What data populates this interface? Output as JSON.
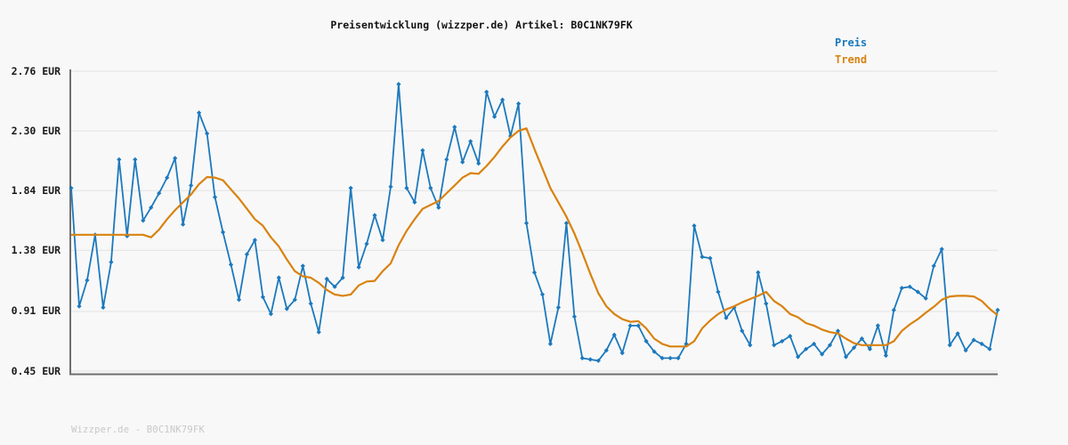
{
  "watermark": "Wizzper.de - B0C1NK79FK",
  "colors": {
    "background": "#f8f8f8",
    "grid": "#e8e8e8",
    "axis": "#6e6e6e",
    "preis": "#1c79bd",
    "trend": "#d9820f",
    "tick_label": "#1a1a1a",
    "title": "#111111",
    "watermark": "#c8c8c8"
  },
  "chart_data": {
    "type": "line",
    "title": "Preisentwicklung (wizzper.de) Artikel: B0C1NK79FK",
    "xlabel": "",
    "ylabel": "",
    "ylim": [
      0.45,
      2.76
    ],
    "grid": true,
    "legend_position": "top-right",
    "x_tick_labels": [],
    "n_points": 117,
    "y_ticks": [
      {
        "label": "2.76 EUR",
        "value": 2.76
      },
      {
        "label": "2.30 EUR",
        "value": 2.3
      },
      {
        "label": "1.84 EUR",
        "value": 1.84
      },
      {
        "label": "1.38 EUR",
        "value": 1.38
      },
      {
        "label": "0.91 EUR",
        "value": 0.91
      },
      {
        "label": "0.45 EUR",
        "value": 0.45
      }
    ],
    "series": [
      {
        "name": "Preis",
        "unit": "EUR",
        "marker": "diamond",
        "values": [
          1.86,
          0.95,
          1.15,
          1.5,
          0.94,
          1.29,
          2.08,
          1.49,
          2.08,
          1.61,
          1.71,
          1.82,
          1.94,
          2.09,
          1.58,
          1.88,
          2.44,
          2.28,
          1.79,
          1.52,
          1.27,
          1.0,
          1.35,
          1.46,
          1.02,
          0.89,
          1.17,
          0.93,
          1.0,
          1.26,
          0.97,
          0.75,
          1.16,
          1.1,
          1.17,
          1.86,
          1.25,
          1.43,
          1.65,
          1.46,
          1.87,
          2.66,
          1.86,
          1.75,
          2.15,
          1.86,
          1.71,
          2.08,
          2.33,
          2.06,
          2.22,
          2.05,
          2.6,
          2.41,
          2.54,
          2.26,
          2.51,
          1.59,
          1.21,
          1.04,
          0.66,
          0.94,
          1.59,
          0.87,
          0.55,
          0.54,
          0.53,
          0.61,
          0.73,
          0.59,
          0.8,
          0.8,
          0.68,
          0.6,
          0.55,
          0.55,
          0.55,
          0.66,
          1.57,
          1.33,
          1.32,
          1.06,
          0.86,
          0.94,
          0.76,
          0.65,
          1.21,
          0.97,
          0.65,
          0.68,
          0.72,
          0.56,
          0.62,
          0.66,
          0.58,
          0.65,
          0.76,
          0.56,
          0.63,
          0.7,
          0.62,
          0.8,
          0.57,
          0.92,
          1.09,
          1.1,
          1.06,
          1.01,
          1.26,
          1.39,
          0.65,
          0.74,
          0.61,
          0.69,
          0.66,
          0.62,
          0.92
        ]
      },
      {
        "name": "Trend",
        "unit": "EUR",
        "marker": "none",
        "values": [
          1.5,
          1.5,
          1.5,
          1.5,
          1.5,
          1.5,
          1.5,
          1.5,
          1.5,
          1.5,
          1.48,
          1.54,
          1.62,
          1.69,
          1.75,
          1.81,
          1.89,
          1.945,
          1.94,
          1.92,
          1.85,
          1.78,
          1.7,
          1.62,
          1.57,
          1.48,
          1.41,
          1.31,
          1.22,
          1.18,
          1.17,
          1.13,
          1.075,
          1.04,
          1.03,
          1.04,
          1.11,
          1.14,
          1.145,
          1.22,
          1.28,
          1.42,
          1.53,
          1.62,
          1.7,
          1.73,
          1.76,
          1.82,
          1.88,
          1.94,
          1.975,
          1.97,
          2.03,
          2.1,
          2.18,
          2.25,
          2.3,
          2.32,
          2.16,
          2.01,
          1.86,
          1.75,
          1.64,
          1.51,
          1.36,
          1.2,
          1.05,
          0.95,
          0.89,
          0.85,
          0.83,
          0.835,
          0.78,
          0.7,
          0.66,
          0.64,
          0.64,
          0.64,
          0.68,
          0.78,
          0.84,
          0.89,
          0.925,
          0.95,
          0.98,
          1.005,
          1.03,
          1.06,
          0.99,
          0.95,
          0.89,
          0.865,
          0.82,
          0.8,
          0.77,
          0.75,
          0.74,
          0.7,
          0.665,
          0.65,
          0.65,
          0.65,
          0.65,
          0.68,
          0.76,
          0.81,
          0.85,
          0.9,
          0.945,
          1.0,
          1.025,
          1.03,
          1.03,
          1.025,
          0.99,
          0.93,
          0.88
        ]
      }
    ]
  }
}
